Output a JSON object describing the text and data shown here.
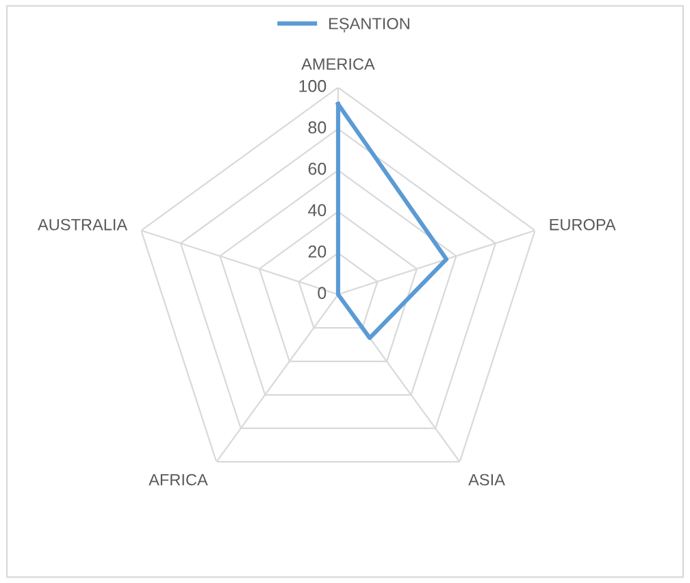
{
  "chart_data": {
    "type": "radar",
    "categories": [
      "AMERICA",
      "EUROPA",
      "ASIA",
      "AFRICA",
      "AUSTRALIA"
    ],
    "series": [
      {
        "name": "EȘANTION",
        "color": "#5b9bd5",
        "values": [
          92,
          55,
          26,
          0,
          0
        ]
      }
    ],
    "ylim": [
      0,
      100
    ],
    "yticks": [
      0,
      20,
      40,
      60,
      80,
      100
    ],
    "grid": true,
    "legend": "top",
    "marker": "none",
    "line_style": "solid"
  }
}
